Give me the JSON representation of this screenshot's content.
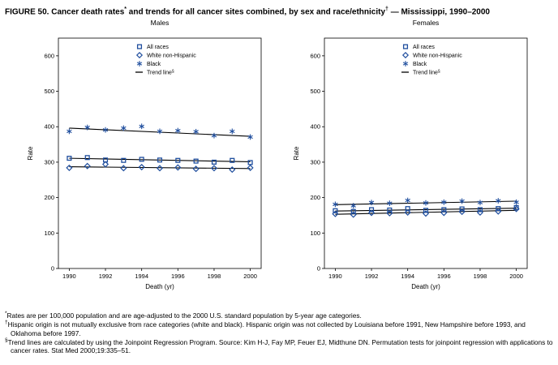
{
  "figure": {
    "title_part1": "FIGURE 50. Cancer death rates",
    "title_sup1": "*",
    "title_part2": " and trends for all cancer sites combined, by sex and race/ethnicity",
    "title_sup2": "†",
    "title_part3": " — Mississippi, 1990–2000"
  },
  "chart_data": [
    {
      "type": "scatter",
      "title": "Males",
      "xlabel": "Death (yr)",
      "ylabel": "Rate",
      "xlim": [
        1989.4,
        2000.6
      ],
      "ylim": [
        0,
        650
      ],
      "yticks": [
        0,
        100,
        200,
        300,
        400,
        500,
        600
      ],
      "xticks": [
        1990,
        1992,
        1994,
        1996,
        1998,
        2000
      ],
      "x": [
        1990,
        1991,
        1992,
        1993,
        1994,
        1995,
        1996,
        1997,
        1998,
        1999,
        2000
      ],
      "marker_color": "#1F4E9E",
      "trend_color": "#000000",
      "grid": false,
      "legend_position": "upper-middle-right-inside",
      "series": [
        {
          "name": "All races",
          "marker": "square",
          "values": [
            311,
            313,
            306,
            305,
            308,
            306,
            305,
            303,
            300,
            305,
            299
          ]
        },
        {
          "name": "White non-Hispanic",
          "marker": "diamond",
          "values": [
            284,
            289,
            294,
            283,
            286,
            283,
            285,
            281,
            283,
            279,
            284
          ]
        },
        {
          "name": "Black",
          "marker": "asterisk",
          "values": [
            387,
            398,
            391,
            396,
            401,
            387,
            389,
            386,
            375,
            387,
            371
          ]
        }
      ],
      "trend_lines": [
        {
          "series": "All races",
          "start": [
            1990,
            311
          ],
          "end": [
            2000,
            301
          ]
        },
        {
          "series": "White non-Hispanic",
          "start": [
            1990,
            287
          ],
          "end": [
            2000,
            282
          ]
        },
        {
          "series": "Black",
          "start": [
            1990,
            396
          ],
          "end": [
            2000,
            373
          ]
        }
      ],
      "legend": [
        {
          "label": "All races",
          "marker": "square"
        },
        {
          "label": "White non-Hispanic",
          "marker": "diamond"
        },
        {
          "label": "Black",
          "marker": "asterisk"
        },
        {
          "label": "Trend line",
          "sup": "§",
          "marker": "line"
        }
      ]
    },
    {
      "type": "scatter",
      "title": "Females",
      "xlabel": "Death (yr)",
      "ylabel": "Rate",
      "xlim": [
        1989.4,
        2000.6
      ],
      "ylim": [
        0,
        650
      ],
      "yticks": [
        0,
        100,
        200,
        300,
        400,
        500,
        600
      ],
      "xticks": [
        1990,
        1992,
        1994,
        1996,
        1998,
        2000
      ],
      "x": [
        1990,
        1991,
        1992,
        1993,
        1994,
        1995,
        1996,
        1997,
        1998,
        1999,
        2000
      ],
      "marker_color": "#1F4E9E",
      "trend_color": "#000000",
      "grid": false,
      "legend_position": "upper-middle-right-inside",
      "series": [
        {
          "name": "All races",
          "marker": "square",
          "values": [
            163,
            161,
            166,
            165,
            169,
            164,
            166,
            168,
            166,
            169,
            172
          ]
        },
        {
          "name": "White non-Hispanic",
          "marker": "diamond",
          "values": [
            154,
            152,
            157,
            156,
            158,
            155,
            157,
            160,
            158,
            161,
            168
          ]
        },
        {
          "name": "Black",
          "marker": "asterisk",
          "values": [
            181,
            177,
            186,
            184,
            192,
            185,
            187,
            190,
            186,
            191,
            187
          ]
        }
      ],
      "trend_lines": [
        {
          "series": "All races",
          "start": [
            1990,
            162
          ],
          "end": [
            2000,
            170
          ]
        },
        {
          "series": "White non-Hispanic",
          "start": [
            1990,
            153
          ],
          "end": [
            2000,
            164
          ]
        },
        {
          "series": "Black",
          "start": [
            1990,
            180
          ],
          "end": [
            2000,
            190
          ]
        }
      ],
      "legend": [
        {
          "label": "All races",
          "marker": "square"
        },
        {
          "label": "White non-Hispanic",
          "marker": "diamond"
        },
        {
          "label": "Black",
          "marker": "asterisk"
        },
        {
          "label": "Trend line",
          "sup": "§",
          "marker": "line"
        }
      ]
    }
  ],
  "footnotes": [
    {
      "marker": "*",
      "text": "Rates are per 100,000 population and are age-adjusted to the 2000 U.S. standard population by 5-year age categories."
    },
    {
      "marker": "†",
      "text": "Hispanic origin is not mutually exclusive from race categories (white and black). Hispanic origin was not collected by Louisiana before 1991, New Hampshire before 1993, and Oklahoma before 1997."
    },
    {
      "marker": "§",
      "text": "Trend lines are calculated by using the Joinpoint Regression Program. Source: Kim H-J, Fay MP, Feuer EJ, Midthune DN. Permutation tests for joinpoint regression with applications to cancer rates. Stat Med 2000;19:335–51."
    }
  ]
}
